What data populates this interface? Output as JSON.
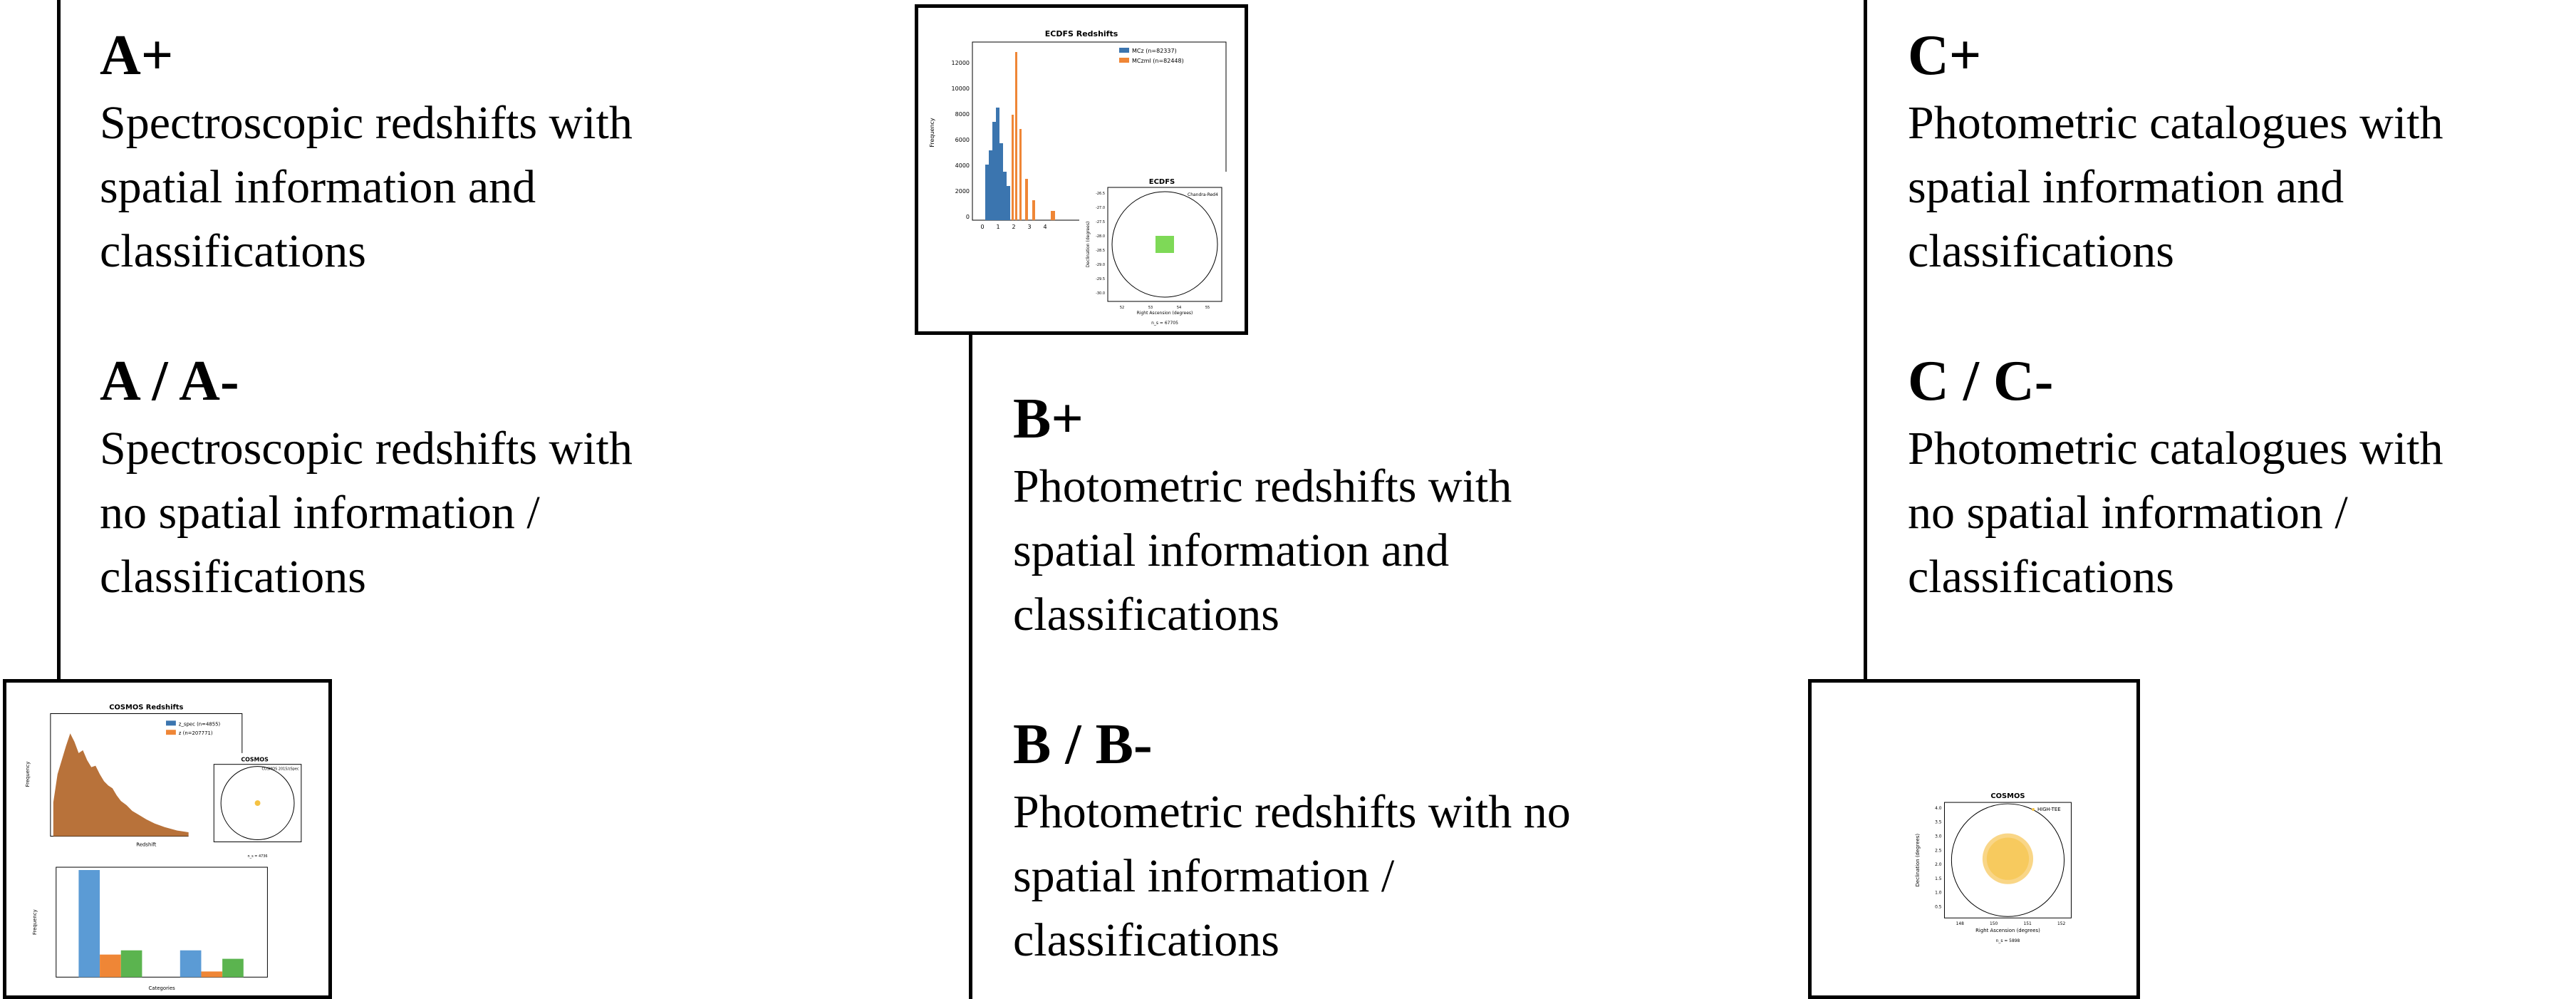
{
  "grades": {
    "a_plus": {
      "title": "A+",
      "lines": [
        "Spectroscopic redshifts with",
        "spatial information and",
        "classifications"
      ]
    },
    "a_minus": {
      "title": "A / A-",
      "lines": [
        "Spectroscopic redshifts with",
        "no spatial information /",
        "classifications"
      ]
    },
    "b_plus": {
      "title": "B+",
      "lines": [
        "Photometric redshifts with",
        "spatial information and",
        "classifications"
      ]
    },
    "b_minus": {
      "title": "B / B-",
      "lines": [
        "Photometric redshifts with no",
        "spatial information /",
        "classifications"
      ]
    },
    "c_plus": {
      "title": "C+",
      "lines": [
        "Photometric catalogues with",
        "spatial information and",
        "classifications"
      ]
    },
    "c_minus": {
      "title": "C / C-",
      "lines": [
        "Photometric catalogues with",
        "no spatial information /",
        "classifications"
      ]
    }
  },
  "thumbnails": {
    "ecdfs": {
      "hist_title": "ECDFS Redshifts",
      "legend": [
        "MCz (n=82337)",
        "MCzml (n=82448)"
      ],
      "sky_title": "ECDFS",
      "sky_legend": "Chandra-Red4",
      "xlabel": "Right Ascension (degrees)",
      "ylabel": "Declination (degrees)",
      "freq_label": "Frequency",
      "yticks": [
        "12000",
        "10000",
        "8000",
        "6000",
        "4000",
        "2000",
        "0"
      ],
      "xticks": [
        "0",
        "1",
        "2",
        "3",
        "4"
      ],
      "decticks": [
        "-26.5",
        "-27.0",
        "-27.5",
        "-28.0",
        "-28.5",
        "-29.0",
        "-29.5",
        "-30.0"
      ],
      "raticks": [
        "52",
        "53",
        "54",
        "55"
      ],
      "footnote": "n_s = 67705"
    },
    "cosmos_spec": {
      "hist_title": "COSMOS Redshifts",
      "legend": [
        "z_spec (n=4855)",
        "z (n=207771)"
      ],
      "sky_title": "COSMOS",
      "sky_legend": "COSMOS 2015/zSpec",
      "xlabel": "Redshift",
      "freq_label": "Frequency",
      "cat_label": "Categories",
      "footnote": "n_s = 4736"
    },
    "cosmos_phot": {
      "sky_title": "COSMOS",
      "sky_legend": "HIGH-TEE",
      "xlabel": "Right Ascension (degrees)",
      "ylabel": "Declination (degrees)",
      "decticks": [
        "4.0",
        "3.5",
        "3.0",
        "2.5",
        "2.0",
        "1.5",
        "1.0",
        "0.5"
      ],
      "raticks": [
        "148",
        "150",
        "151",
        "152"
      ],
      "footnote": "n_s = 5898"
    }
  },
  "colors": {
    "blue": "#3b75af",
    "orange": "#ef8636",
    "green": "#5bb44f",
    "lime": "#7ed957",
    "gold": "#f5c242"
  }
}
